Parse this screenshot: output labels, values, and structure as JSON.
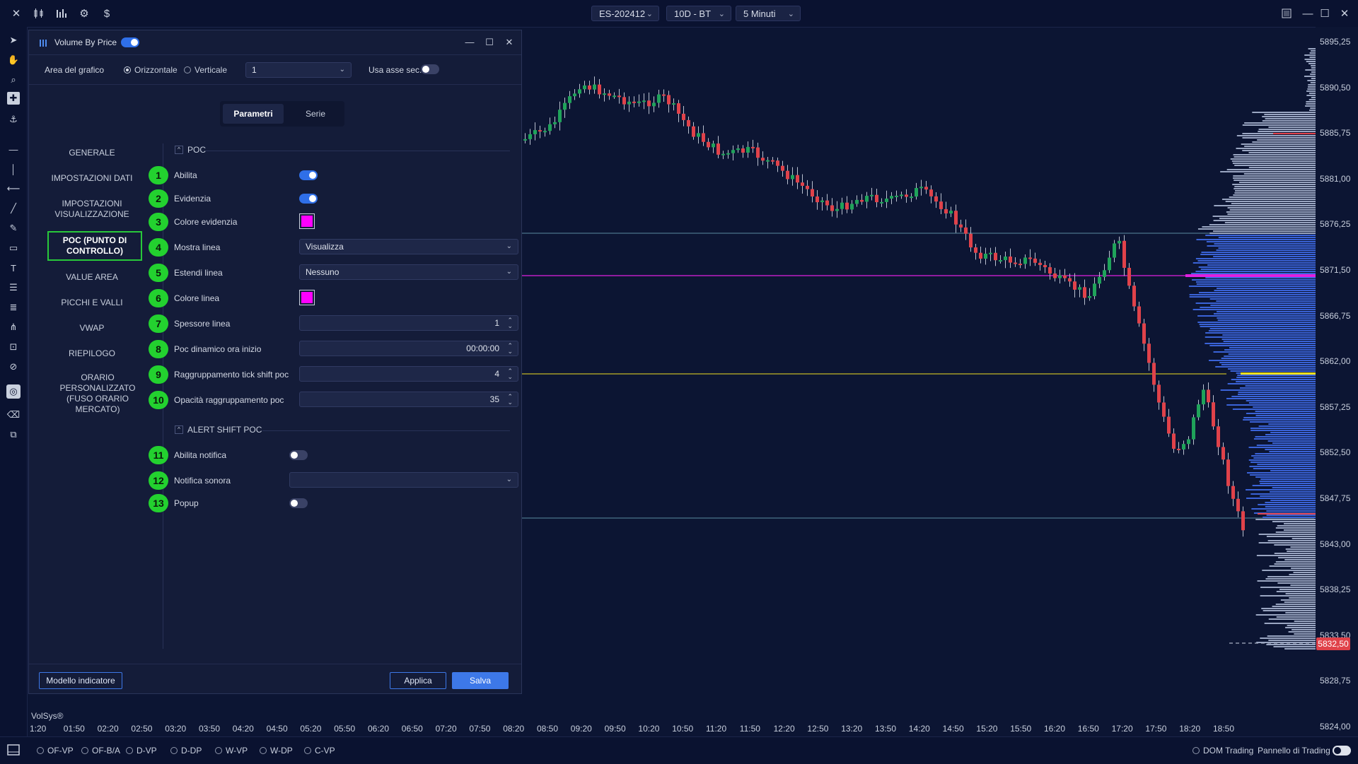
{
  "topbar": {
    "symbol": "ES-202412",
    "range": "10D - BT",
    "timeframe": "5 Minuti"
  },
  "dialog": {
    "title": "Volume By Price",
    "enabled": true,
    "area_label": "Area del grafico",
    "orientation_options": [
      "Orizzontale",
      "Verticale"
    ],
    "orientation_selected": "Orizzontale",
    "area_value": "1",
    "sec_axis_label": "Usa asse sec.",
    "sec_axis_on": false,
    "tabs": [
      "Parametri",
      "Serie"
    ],
    "active_tab": "Parametri",
    "nav": [
      "GENERALE",
      "IMPOSTAZIONI DATI",
      "IMPOSTAZIONI VISUALIZZAZIONE",
      "POC (PUNTO DI CONTROLLO)",
      "VALUE AREA",
      "PICCHI E VALLI",
      "VWAP",
      "RIEPILOGO",
      "ORARIO PERSONALIZZATO (FUSO ORARIO MERCATO)"
    ],
    "active_nav": "POC (PUNTO DI CONTROLLO)",
    "section_poc": "POC",
    "section_alert": "ALERT SHIFT POC",
    "params": {
      "abilita": {
        "num": "1",
        "label": "Abilita",
        "on": true
      },
      "evidenzia": {
        "num": "2",
        "label": "Evidenzia",
        "on": true
      },
      "colore_evidenzia": {
        "num": "3",
        "label": "Colore evidenzia",
        "color": "#ff00ff"
      },
      "mostra_linea": {
        "num": "4",
        "label": "Mostra linea",
        "value": "Visualizza"
      },
      "estendi_linea": {
        "num": "5",
        "label": "Estendi linea",
        "value": "Nessuno"
      },
      "colore_linea": {
        "num": "6",
        "label": "Colore linea",
        "color": "#ff00ff"
      },
      "spessore_linea": {
        "num": "7",
        "label": "Spessore linea",
        "value": "1"
      },
      "poc_dinamico": {
        "num": "8",
        "label": "Poc dinamico ora inizio",
        "value": "00:00:00"
      },
      "raggruppamento": {
        "num": "9",
        "label": "Raggruppamento tick shift poc",
        "value": "4"
      },
      "opacita": {
        "num": "10",
        "label": "Opacità raggruppamento poc",
        "value": "35"
      },
      "abilita_notifica": {
        "num": "11",
        "label": "Abilita notifica",
        "on": false
      },
      "notifica_sonora": {
        "num": "12",
        "label": "Notifica sonora",
        "value": ""
      },
      "popup": {
        "num": "13",
        "label": "Popup",
        "on": false
      }
    },
    "footer": {
      "template_button": "Modello indicatore",
      "apply_button": "Applica",
      "save_button": "Salva"
    }
  },
  "chart": {
    "price_ticks": [
      "5895,25",
      "5890,50",
      "5885,75",
      "5881,00",
      "5876,25",
      "5871,50",
      "5866,75",
      "5862,00",
      "5857,25",
      "5852,50",
      "5847,75",
      "5843,00",
      "5838,25",
      "5833,50",
      "5828,75",
      "5824,00"
    ],
    "last_price": "5832,50",
    "time_ticks": [
      "1:20",
      "01:50",
      "02:20",
      "02:50",
      "03:20",
      "03:50",
      "04:20",
      "04:50",
      "05:20",
      "05:50",
      "06:20",
      "06:50",
      "07:20",
      "07:50",
      "08:20",
      "08:50",
      "09:20",
      "09:50",
      "10:20",
      "10:50",
      "11:20",
      "11:50",
      "12:20",
      "12:50",
      "13:20",
      "13:50",
      "14:20",
      "14:50",
      "15:20",
      "15:50",
      "16:20",
      "16:50",
      "17:20",
      "17:50",
      "18:20",
      "18:50"
    ],
    "watermark": "VolSys®",
    "poc_color": "#e020e0",
    "vah_color": "#f0e020",
    "up_color": "#1fa35a",
    "down_color": "#e0424a"
  },
  "bottombar": {
    "studies": [
      "OF-VP",
      "OF-B/A",
      "D-VP",
      "D-DP",
      "W-VP",
      "W-DP",
      "C-VP"
    ],
    "dom_trading": "DOM Trading",
    "pannello": "Pannello di Trading"
  }
}
